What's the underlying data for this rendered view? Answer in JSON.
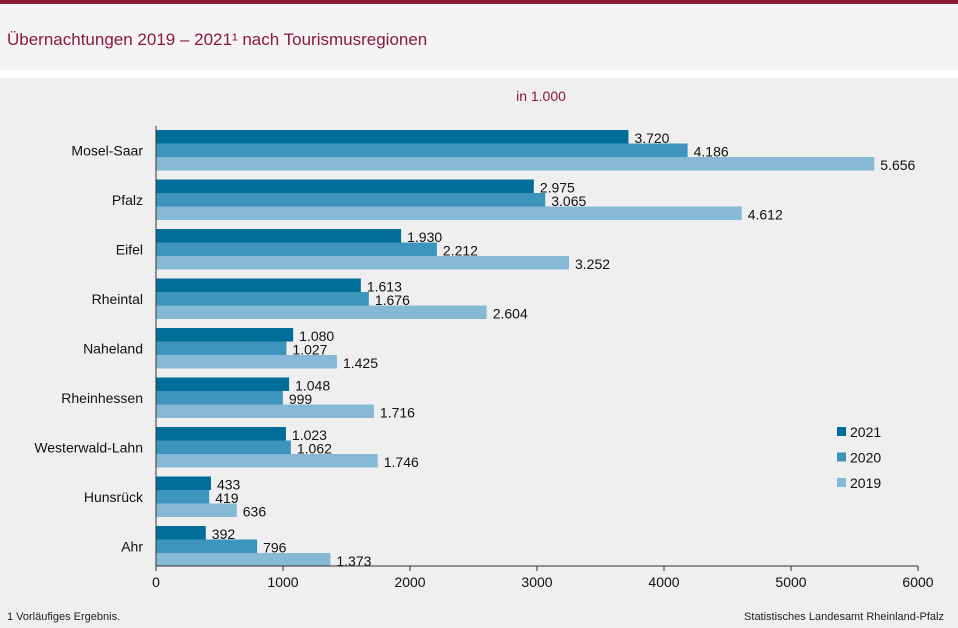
{
  "title": "Übernachtungen 2019 – 2021¹ nach Tourismusregionen",
  "footnote": "1 Vorläufiges  Ergebnis.",
  "source": "Statistisches Landesamt  Rheinland-Pfalz",
  "colors": {
    "2021": "#006e98",
    "2020": "#3d94bd",
    "2019": "#85b9d5",
    "accent": "#8a1a38"
  },
  "chart_data": {
    "type": "bar",
    "orientation": "horizontal",
    "unit_label": "in 1.000",
    "categories": [
      "Mosel-Saar",
      "Pfalz",
      "Eifel",
      "Rheintal",
      "Naheland",
      "Rheinhessen",
      "Westerwald-Lahn",
      "Hunsrück",
      "Ahr"
    ],
    "series": [
      {
        "name": "2021",
        "values": [
          3720,
          2975,
          1930,
          1613,
          1080,
          1048,
          1023,
          433,
          392
        ],
        "labels": [
          "3.720",
          "2.975",
          "1.930",
          "1.613",
          "1.080",
          "1.048",
          "1.023",
          "433",
          "392"
        ]
      },
      {
        "name": "2020",
        "values": [
          4186,
          3065,
          2212,
          1676,
          1027,
          999,
          1062,
          419,
          796
        ],
        "labels": [
          "4.186",
          "3.065",
          "2.212",
          "1.676",
          "1.027",
          "999",
          "1.062",
          "419",
          "796"
        ]
      },
      {
        "name": "2019",
        "values": [
          5656,
          4612,
          3252,
          2604,
          1425,
          1716,
          1746,
          636,
          1373
        ],
        "labels": [
          "5.656",
          "4.612",
          "3.252",
          "2.604",
          "1.425",
          "1.716",
          "1.746",
          "636",
          "1.373"
        ]
      }
    ],
    "xlim": [
      0,
      6000
    ],
    "xticks": [
      0,
      1000,
      2000,
      3000,
      4000,
      5000,
      6000
    ],
    "xtick_labels": [
      "0",
      "1000",
      "2000",
      "3000",
      "4000",
      "5000",
      "6000"
    ],
    "legend": {
      "position": "right",
      "entries": [
        "2021",
        "2020",
        "2019"
      ]
    },
    "grid": false
  }
}
